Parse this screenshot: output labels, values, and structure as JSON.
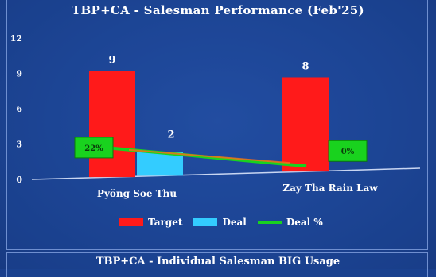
{
  "chart_data": {
    "type": "bar",
    "title": "TBP+CA - Salesman Performance (Feb'25)",
    "categories": [
      "Pyöng Soe Thu",
      "Zay Tha Rain Law"
    ],
    "series": [
      {
        "name": "Target",
        "values": [
          9,
          8
        ],
        "color": "#ff1a1a"
      },
      {
        "name": "Deal",
        "values": [
          2,
          0
        ],
        "color": "#33ccff"
      }
    ],
    "line_series": {
      "name": "Deal %",
      "values": [
        22,
        0
      ],
      "labels": [
        "22%",
        "0%"
      ],
      "color": "#19d21e"
    },
    "bar_labels": [
      "9",
      "2",
      "8"
    ],
    "ylim": [
      0,
      12
    ],
    "yticks": [
      "0",
      "3",
      "6",
      "9",
      "12"
    ],
    "xlabel": "",
    "ylabel": "",
    "legend": "bottom",
    "grid": false
  },
  "next_section": {
    "title": "TBP+CA - Individual Salesman BIG Usage"
  }
}
